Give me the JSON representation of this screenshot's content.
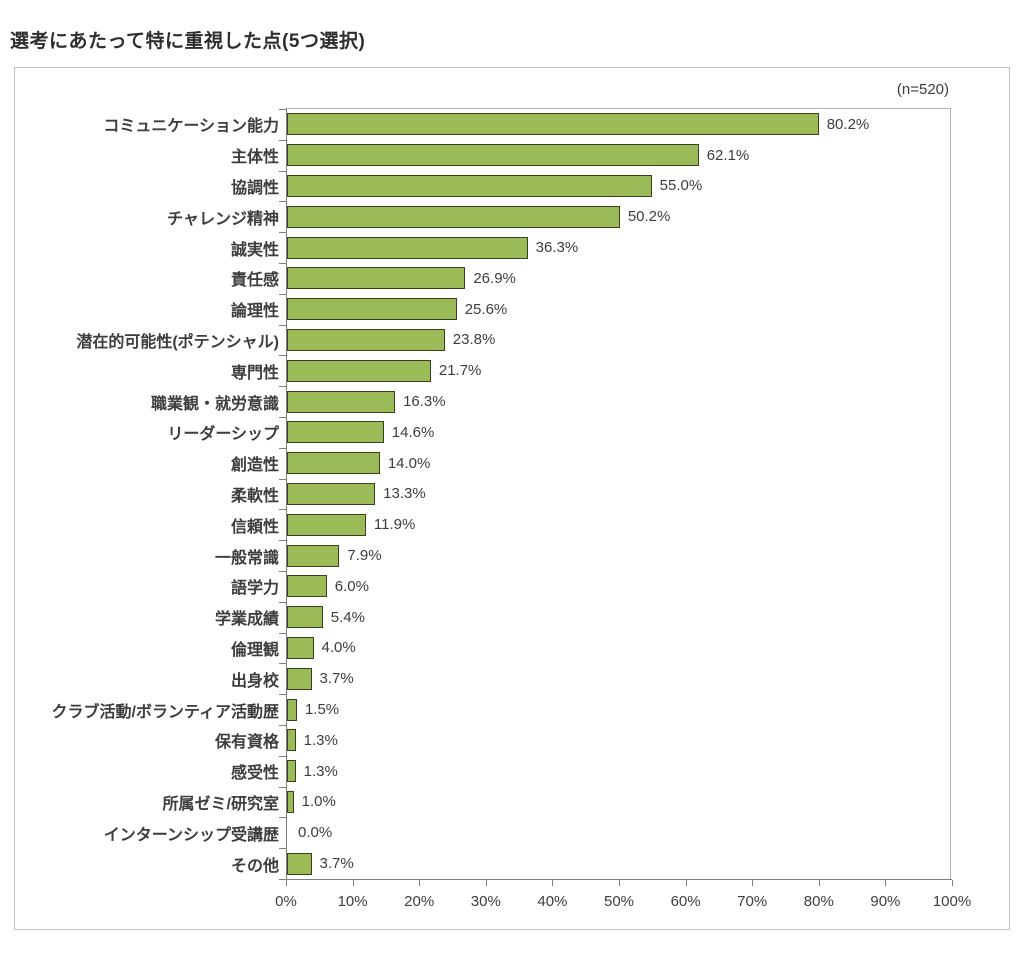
{
  "page": {
    "title": "選考にあたって特に重視した点(5つ選択)",
    "n_label": "(n=520)"
  },
  "colors": {
    "bar_fill": "#9bbb59",
    "bar_border": "#39401d",
    "axis_line": "#7f7f7f",
    "frame_border": "#c3c3c3",
    "text": "#3d3d3d"
  },
  "chart_data": {
    "type": "bar",
    "orientation": "horizontal",
    "title": "選考にあたって特に重視した点(5つ選択)",
    "annotation": "(n=520)",
    "sample_size": 520,
    "categories": [
      "コミュニケーション能力",
      "主体性",
      "協調性",
      "チャレンジ精神",
      "誠実性",
      "責任感",
      "論理性",
      "潜在的可能性(ポテンシャル)",
      "専門性",
      "職業観・就労意識",
      "リーダーシップ",
      "創造性",
      "柔軟性",
      "信頼性",
      "一般常識",
      "語学力",
      "学業成績",
      "倫理観",
      "出身校",
      "クラブ活動/ボランティア活動歴",
      "保有資格",
      "感受性",
      "所属ゼミ/研究室",
      "インターンシップ受講歴",
      "その他"
    ],
    "values": [
      80.2,
      62.1,
      55.0,
      50.2,
      36.3,
      26.9,
      25.6,
      23.8,
      21.7,
      16.3,
      14.6,
      14.0,
      13.3,
      11.9,
      7.9,
      6.0,
      5.4,
      4.0,
      3.7,
      1.5,
      1.3,
      1.3,
      1.0,
      0.0,
      3.7
    ],
    "value_labels": [
      "80.2%",
      "62.1%",
      "55.0%",
      "50.2%",
      "36.3%",
      "26.9%",
      "25.6%",
      "23.8%",
      "21.7%",
      "16.3%",
      "14.6%",
      "14.0%",
      "13.3%",
      "11.9%",
      "7.9%",
      "6.0%",
      "5.4%",
      "4.0%",
      "3.7%",
      "1.5%",
      "1.3%",
      "1.3%",
      "1.0%",
      "0.0%",
      "3.7%"
    ],
    "xlabel": "",
    "ylabel": "",
    "xlim": [
      0,
      100
    ],
    "x_tick_labels": [
      "0%",
      "10%",
      "20%",
      "30%",
      "40%",
      "50%",
      "60%",
      "70%",
      "80%",
      "90%",
      "100%"
    ],
    "grid": false,
    "legend": null
  }
}
